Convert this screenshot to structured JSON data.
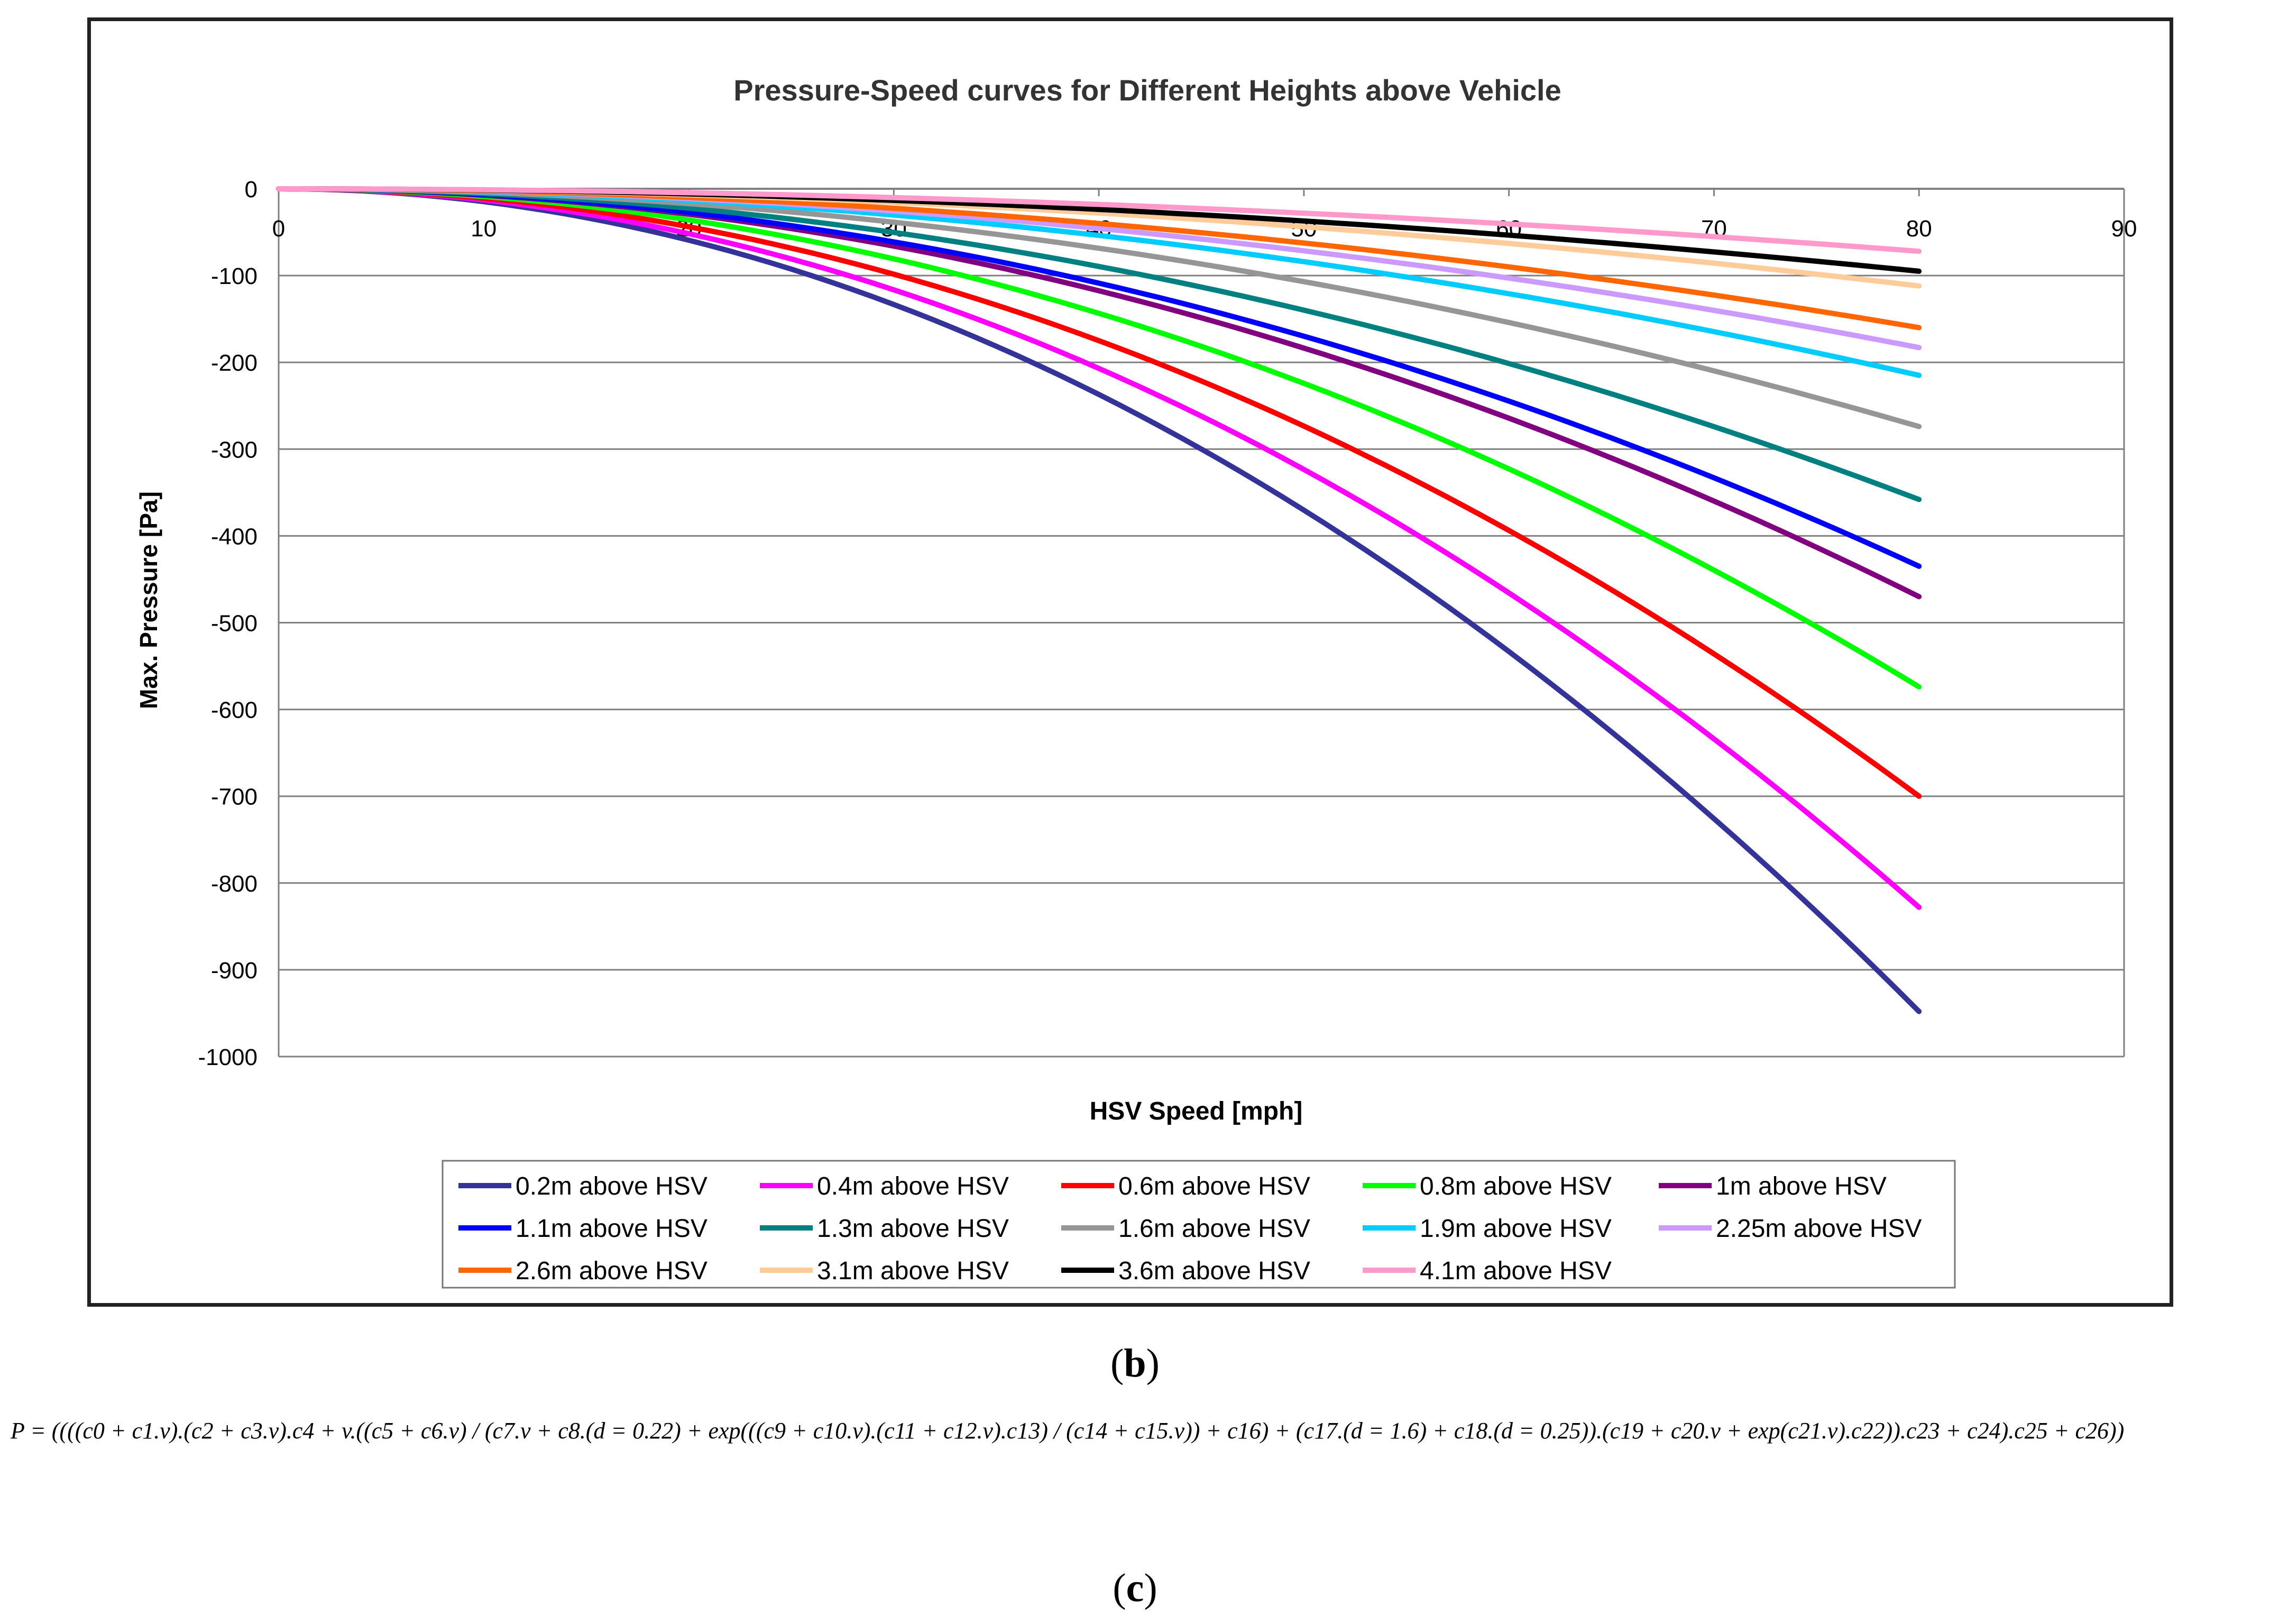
{
  "chart_data": {
    "type": "line",
    "title": "Pressure-Speed curves for Different Heights above Vehicle",
    "xlabel": "HSV Speed [mph]",
    "ylabel": "Max. Pressure [Pa]",
    "xlim": [
      0,
      90
    ],
    "ylim": [
      -1000,
      0
    ],
    "xticks": [
      "0",
      "10",
      "20",
      "30",
      "40",
      "50",
      "60",
      "70",
      "80",
      "90"
    ],
    "yticks": [
      "0",
      "-100",
      "-200",
      "-300",
      "-400",
      "-500",
      "-600",
      "-700",
      "-800",
      "-900",
      "-1000"
    ],
    "grid": "horizontal",
    "legend_position": "bottom",
    "x": [
      0,
      80
    ],
    "series": [
      {
        "name": "0.2m above HSV",
        "color": "#333399",
        "end_value": -948
      },
      {
        "name": "0.4m above HSV",
        "color": "#ff00ff",
        "end_value": -828
      },
      {
        "name": "0.6m above HSV",
        "color": "#ff0000",
        "end_value": -700
      },
      {
        "name": "0.8m above HSV",
        "color": "#00ff00",
        "end_value": -574
      },
      {
        "name": "1m above HSV",
        "color": "#800080",
        "end_value": -470
      },
      {
        "name": "1.1m above HSV",
        "color": "#0000ff",
        "end_value": -435
      },
      {
        "name": "1.3m above HSV",
        "color": "#008080",
        "end_value": -358
      },
      {
        "name": "1.6m above HSV",
        "color": "#969696",
        "end_value": -274
      },
      {
        "name": "1.9m above HSV",
        "color": "#00ccff",
        "end_value": -215
      },
      {
        "name": "2.25m above HSV",
        "color": "#cc99ff",
        "end_value": -183
      },
      {
        "name": "2.6m above HSV",
        "color": "#ff6600",
        "end_value": -160
      },
      {
        "name": "3.1m above HSV",
        "color": "#ffcc99",
        "end_value": -112
      },
      {
        "name": "3.6m above HSV",
        "color": "#000000",
        "end_value": -95
      },
      {
        "name": "4.1m above HSV",
        "color": "#ff99cc",
        "end_value": -72
      }
    ]
  },
  "labels": {
    "panel_b_paren_open": "(",
    "panel_b_letter": "b",
    "panel_b_paren_close": ")",
    "panel_c_paren_open": "(",
    "panel_c_letter": "c",
    "panel_c_paren_close": ")"
  },
  "formula": "P = ((((c0 + c1.v).(c2 + c3.v).c4 + v.((c5 + c6.v) / (c7.v + c8.(d = 0.22) + exp(((c9 + c10.v).(c11 + c12.v).c13) / (c14 + c15.v)) + c16) + (c17.(d = 1.6) + c18.(d = 0.25)).(c19 + c20.v + exp(c21.v).c22)).c23 + c24).c25 + c26))"
}
